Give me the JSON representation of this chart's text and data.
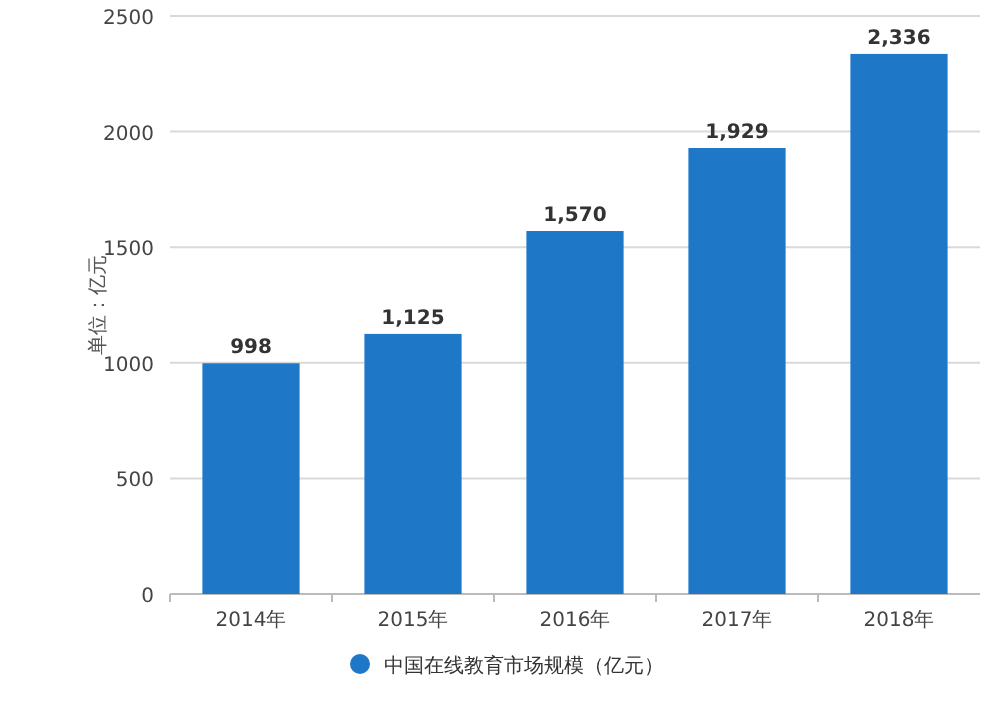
{
  "chart_data": {
    "type": "bar",
    "ylabel": "单位：亿元",
    "categories": [
      "2014年",
      "2015年",
      "2016年",
      "2017年",
      "2018年"
    ],
    "series": [
      {
        "name": "中国在线教育市场规模（亿元）",
        "color": "#1f77c8",
        "values": [
          998,
          1125,
          1570,
          1929,
          2336
        ],
        "value_labels": [
          "998",
          "1,125",
          "1,570",
          "1,929",
          "2,336"
        ]
      }
    ],
    "ylim": [
      0,
      2500
    ],
    "yticks": [
      0,
      500,
      1000,
      1500,
      2000,
      2500
    ],
    "grid": "y",
    "legend": "bottom"
  }
}
